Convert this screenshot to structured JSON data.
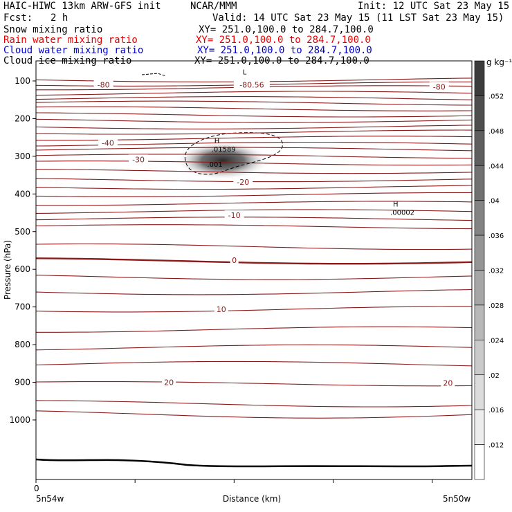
{
  "header": {
    "model": "HAIC-HIWC 13km ARW-GFS init",
    "org": "NCAR/MMM",
    "init": "Init: 12 UTC Sat 23 May 15",
    "fcst_label": "Fcst:",
    "fcst_value": "2 h",
    "valid": "Valid: 14 UTC Sat 23 May 15 (11 LST Sat 23 May 15)"
  },
  "fields": [
    {
      "label": "Snow mixing ratio",
      "xy": "XY= 251.0,100.0 to 284.7,100.0",
      "color": "#000000"
    },
    {
      "label": "Rain water mixing ratio",
      "xy": "XY= 251.0,100.0 to 284.7,100.0",
      "color": "#e60000"
    },
    {
      "label": "Cloud water mixing ratio",
      "xy": "XY= 251.0,100.0 to 284.7,100.0",
      "color": "#0000cc"
    },
    {
      "label": "Cloud ice mixing ratio",
      "xy": "XY= 251.0,100.0 to 284.7,100.0",
      "color": "#000000"
    }
  ],
  "chart_data": {
    "type": "contour-cross-section",
    "ylabel": "Pressure (hPa)",
    "xlabel": "Distance (km)",
    "x_left_label": "5n54w",
    "x_right_label": "5n50w",
    "x_origin_label": "0",
    "y_ticks": [
      100,
      200,
      300,
      400,
      500,
      600,
      700,
      800,
      900,
      1000
    ],
    "ylim": [
      1050,
      50
    ],
    "colorbar": {
      "units": "g kg⁻¹",
      "ticks": [
        ".052",
        ".048",
        ".044",
        ".04",
        ".036",
        ".032",
        ".028",
        ".024",
        ".02",
        ".016",
        ".012"
      ]
    },
    "isotherm_color": "#8b1a1a",
    "contour_labels": [
      {
        "text": "-80",
        "x": 0.155,
        "p": 112
      },
      {
        "text": "-80.56",
        "x": 0.495,
        "p": 112
      },
      {
        "text": "-80",
        "x": 0.925,
        "p": 117
      },
      {
        "text": "-40",
        "x": 0.165,
        "p": 266
      },
      {
        "text": "-30",
        "x": 0.235,
        "p": 310
      },
      {
        "text": "-20",
        "x": 0.475,
        "p": 370
      },
      {
        "text": "-10",
        "x": 0.455,
        "p": 458
      },
      {
        "text": "0",
        "x": 0.455,
        "p": 578
      },
      {
        "text": "10",
        "x": 0.425,
        "p": 708
      },
      {
        "text": "20",
        "x": 0.305,
        "p": 902
      },
      {
        "text": "20",
        "x": 0.945,
        "p": 904
      }
    ],
    "extrema": [
      {
        "type": "L",
        "value": "",
        "x": 0.49,
        "p": 97
      },
      {
        "type": "H",
        "value": ".01589",
        "x": 0.425,
        "p": 280
      },
      {
        "type": "",
        "value": ".001",
        "x": 0.415,
        "p": 320
      },
      {
        "type": "H",
        "value": ".00002",
        "x": 0.835,
        "p": 448
      }
    ],
    "max_ice_value": 0.01589
  }
}
